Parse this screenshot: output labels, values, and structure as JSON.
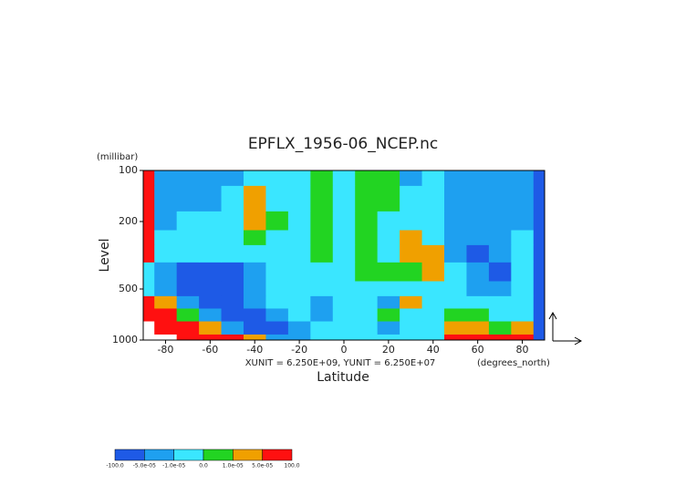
{
  "chart_data": {
    "type": "contour",
    "title": "EPFLX_1956-06_NCEP.nc",
    "y_unit": "(millibar)",
    "ylabel": "Level",
    "xlabel": "Latitude",
    "x_unit": "(degrees_north)",
    "vector_scale": "XUNIT = 6.250E+09, YUNIT = 6.250E+07",
    "x": [
      -90,
      -80,
      -70,
      -60,
      -50,
      -40,
      -30,
      -20,
      -10,
      0,
      10,
      20,
      30,
      40,
      50,
      60,
      70,
      80,
      90
    ],
    "levels": [
      1000,
      850,
      700,
      600,
      500,
      400,
      300,
      250,
      200,
      150,
      100
    ],
    "z": [
      [
        null,
        null,
        7e-05,
        7e-05,
        7e-05,
        3e-05,
        -3e-05,
        -3e-05,
        -5e-06,
        -5e-06,
        -5e-06,
        -5e-06,
        -5e-06,
        -5e-06,
        7e-05,
        7e-05,
        7e-05,
        7e-05,
        -7e-05
      ],
      [
        null,
        7e-05,
        7e-05,
        3e-05,
        -3e-05,
        -7e-05,
        -7e-05,
        -3e-05,
        -5e-06,
        -5e-06,
        -5e-06,
        -3e-05,
        -5e-06,
        -5e-06,
        3e-05,
        3e-05,
        5e-06,
        3e-05,
        -7e-05
      ],
      [
        7e-05,
        7e-05,
        5e-06,
        -3e-05,
        -7e-05,
        -7e-05,
        -3e-05,
        -5e-06,
        -3e-05,
        -5e-06,
        -5e-06,
        5e-06,
        -5e-06,
        -5e-06,
        5e-06,
        5e-06,
        -5e-06,
        -5e-06,
        -7e-05
      ],
      [
        7e-05,
        3e-05,
        -3e-05,
        -7e-05,
        -7e-05,
        -3e-05,
        -5e-06,
        -5e-06,
        -3e-05,
        -5e-06,
        -5e-06,
        -3e-05,
        3e-05,
        -5e-06,
        -5e-06,
        -5e-06,
        -5e-06,
        -5e-06,
        -7e-05
      ],
      [
        -5e-06,
        -3e-05,
        -7e-05,
        -7e-05,
        -7e-05,
        -3e-05,
        -5e-06,
        -5e-06,
        -5e-06,
        -5e-06,
        -5e-06,
        -5e-06,
        -5e-06,
        -5e-06,
        -5e-06,
        -3e-05,
        -3e-05,
        -5e-06,
        -7e-05
      ],
      [
        -5e-06,
        -3e-05,
        -7e-05,
        -7e-05,
        -7e-05,
        -3e-05,
        -5e-06,
        -5e-06,
        -5e-06,
        -5e-06,
        5e-06,
        5e-06,
        5e-06,
        3e-05,
        -5e-06,
        -3e-05,
        -7e-05,
        -5e-06,
        -7e-05
      ],
      [
        7e-05,
        -5e-06,
        -5e-06,
        -5e-06,
        -5e-06,
        -5e-06,
        -5e-06,
        -5e-06,
        5e-06,
        -5e-06,
        5e-06,
        -5e-06,
        3e-05,
        3e-05,
        -3e-05,
        -7e-05,
        -3e-05,
        -5e-06,
        -7e-05
      ],
      [
        7e-05,
        -5e-06,
        -5e-06,
        -5e-06,
        -5e-06,
        5e-06,
        -5e-06,
        -5e-06,
        5e-06,
        -5e-06,
        5e-06,
        -5e-06,
        3e-05,
        -5e-06,
        -3e-05,
        -3e-05,
        -3e-05,
        -5e-06,
        -7e-05
      ],
      [
        7e-05,
        -3e-05,
        -5e-06,
        -5e-06,
        -5e-06,
        3e-05,
        5e-06,
        -5e-06,
        5e-06,
        -5e-06,
        5e-06,
        -5e-06,
        -5e-06,
        -5e-06,
        -3e-05,
        -3e-05,
        -3e-05,
        -3e-05,
        -7e-05
      ],
      [
        7e-05,
        -3e-05,
        -3e-05,
        -3e-05,
        -5e-06,
        3e-05,
        -5e-06,
        -5e-06,
        5e-06,
        -5e-06,
        5e-06,
        5e-06,
        -5e-06,
        -5e-06,
        -3e-05,
        -3e-05,
        -3e-05,
        -3e-05,
        -7e-05
      ],
      [
        7e-05,
        -3e-05,
        -3e-05,
        -3e-05,
        -3e-05,
        -5e-06,
        -5e-06,
        -5e-06,
        5e-06,
        -5e-06,
        5e-06,
        5e-06,
        -3e-05,
        -5e-06,
        -3e-05,
        -3e-05,
        -3e-05,
        -3e-05,
        -7e-05
      ]
    ],
    "xlim": [
      -90,
      90
    ],
    "ylim": [
      1000,
      100
    ],
    "ylog": true,
    "xticks": [
      -80,
      -60,
      -40,
      -20,
      0,
      20,
      40,
      60,
      80
    ],
    "yticks": [
      100,
      200,
      500,
      1000
    ],
    "contour_levels": [
      {
        "value": -100,
        "label": "-100.0"
      },
      {
        "value": -5e-05,
        "label": "-5.0e-05"
      },
      {
        "value": -1e-05,
        "label": "-1.0e-05"
      },
      {
        "value": 0,
        "label": "0.0"
      },
      {
        "value": 1e-05,
        "label": "1.0e-05"
      },
      {
        "value": 5e-05,
        "label": "5.0e-05"
      },
      {
        "value": 100,
        "label": "100.0"
      }
    ],
    "colors": [
      "#1e5ae6",
      "#1ea0f0",
      "#3ae6ff",
      "#22d422",
      "#f0a000",
      "#ff1010"
    ]
  }
}
